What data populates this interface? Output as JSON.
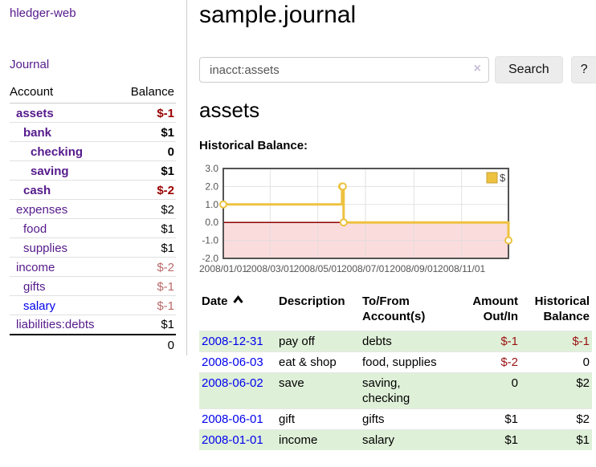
{
  "colors": {
    "link_purple": "#551a8b",
    "link_blue": "#0000ee",
    "negative_strong": "#990000",
    "negative_soft": "#bb6a6a",
    "table_negative": "#991111",
    "row_green": "#dff0d8",
    "chart_line": "#edc240",
    "chart_negative_fill": "#fbdcdc",
    "chart_zero_line": "#8b0000",
    "chart_border": "#545454"
  },
  "sidebar": {
    "app_title": "hledger-web",
    "nav": [
      {
        "label": "Journal"
      }
    ],
    "accounts_table": {
      "headers": [
        "Account",
        "Balance"
      ],
      "rows": [
        {
          "account": "assets",
          "level": 0,
          "bold": true,
          "balance": "$-1",
          "balance_class": "neg-strong",
          "link_blue": false
        },
        {
          "account": "bank",
          "level": 1,
          "bold": true,
          "balance": "$1",
          "balance_class": "",
          "link_blue": false
        },
        {
          "account": "checking",
          "level": 2,
          "bold": true,
          "balance": "0",
          "balance_class": "",
          "link_blue": false
        },
        {
          "account": "saving",
          "level": 2,
          "bold": true,
          "balance": "$1",
          "balance_class": "",
          "link_blue": false
        },
        {
          "account": "cash",
          "level": 1,
          "bold": true,
          "balance": "$-2",
          "balance_class": "neg-strong",
          "link_blue": false
        },
        {
          "account": "expenses",
          "level": 0,
          "bold": false,
          "balance": "$2",
          "balance_class": "",
          "link_blue": false
        },
        {
          "account": "food",
          "level": 1,
          "bold": false,
          "balance": "$1",
          "balance_class": "",
          "link_blue": false
        },
        {
          "account": "supplies",
          "level": 1,
          "bold": false,
          "balance": "$1",
          "balance_class": "",
          "link_blue": false
        },
        {
          "account": "income",
          "level": 0,
          "bold": false,
          "balance": "$-2",
          "balance_class": "neg-soft",
          "link_blue": false
        },
        {
          "account": "gifts",
          "level": 1,
          "bold": false,
          "balance": "$-1",
          "balance_class": "neg-soft",
          "link_blue": false
        },
        {
          "account": "salary",
          "level": 1,
          "bold": false,
          "balance": "$-1",
          "balance_class": "neg-soft",
          "link_blue": true
        },
        {
          "account": "liabilities:debts",
          "level": 0,
          "bold": false,
          "balance": "$1",
          "balance_class": "",
          "link_blue": false
        }
      ],
      "total": "0"
    }
  },
  "main": {
    "title": "sample.journal",
    "search": {
      "value": "inacct:assets",
      "clear_icon": "×",
      "search_label": "Search",
      "help_label": "?"
    },
    "account_heading": "assets",
    "chart_label": "Historical Balance:"
  },
  "chart_data": {
    "type": "line",
    "step": true,
    "title": "Historical Balance",
    "series": [
      {
        "name": "$",
        "color": "#edc240",
        "points": [
          [
            "2008-01-01",
            1
          ],
          [
            "2008-06-01",
            2
          ],
          [
            "2008-06-02",
            2
          ],
          [
            "2008-06-03",
            0
          ],
          [
            "2008-12-31",
            -1
          ]
        ]
      }
    ],
    "x_range": [
      "2008-01-01",
      "2008-12-31"
    ],
    "ylim": [
      -2,
      3
    ],
    "yticks": [
      3.0,
      2.0,
      1.0,
      0.0,
      -1.0,
      -2.0
    ],
    "xticks": [
      {
        "pos": "2008-01-01",
        "label": "2008/01/01"
      },
      {
        "pos": "2008-03-01",
        "label": "2008/03/01"
      },
      {
        "pos": "2008-05-01",
        "label": "2008/05/01"
      },
      {
        "pos": "2008-07-01",
        "label": "2008/07/01"
      },
      {
        "pos": "2008-09-01",
        "label": "2008/09/01"
      },
      {
        "pos": "2008-11-01",
        "label": "2008/11/01"
      }
    ],
    "grid": true,
    "legend_position": "top-right",
    "legend": [
      "$"
    ],
    "negative_region_fill": "#fbdcdc",
    "zero_line_color": "#8b0000"
  },
  "transactions": {
    "sort": {
      "column": "Date",
      "direction": "ascending"
    },
    "headers": [
      "Date",
      "Description",
      "To/From Account(s)",
      "Amount Out/In",
      "Historical Balance"
    ],
    "rows": [
      {
        "date": "2008-12-31",
        "description": "pay off",
        "accounts": "debts",
        "amount": "$-1",
        "amount_class": "neg",
        "balance": "$-1",
        "balance_class": "neg",
        "shaded": true
      },
      {
        "date": "2008-06-03",
        "description": "eat & shop",
        "accounts": "food, supplies",
        "amount": "$-2",
        "amount_class": "neg",
        "balance": "0",
        "balance_class": "",
        "shaded": false
      },
      {
        "date": "2008-06-02",
        "description": "save",
        "accounts": "saving, checking",
        "amount": "0",
        "amount_class": "",
        "balance": "$2",
        "balance_class": "",
        "shaded": true
      },
      {
        "date": "2008-06-01",
        "description": "gift",
        "accounts": "gifts",
        "amount": "$1",
        "amount_class": "",
        "balance": "$2",
        "balance_class": "",
        "shaded": false
      },
      {
        "date": "2008-01-01",
        "description": "income",
        "accounts": "salary",
        "amount": "$1",
        "amount_class": "",
        "balance": "$1",
        "balance_class": "",
        "shaded": true
      }
    ]
  }
}
